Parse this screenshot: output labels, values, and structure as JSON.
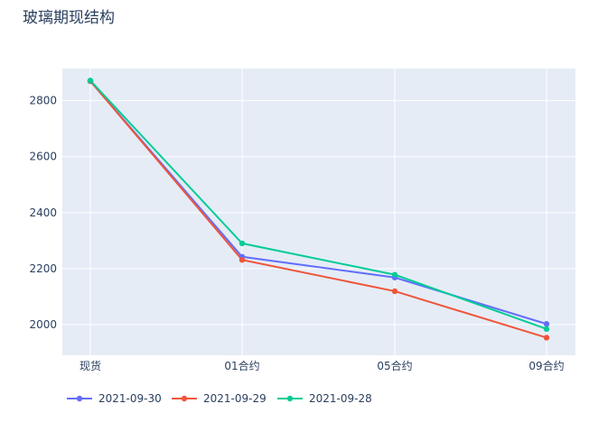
{
  "chart_data": {
    "type": "line",
    "title": "玻璃期现结构",
    "xlabel": "",
    "ylabel": "",
    "categories": [
      "现货",
      "01合约",
      "05合约",
      "09合约"
    ],
    "ylim": [
      1890,
      2915
    ],
    "yticks": [
      2000,
      2200,
      2400,
      2600,
      2800
    ],
    "grid": true,
    "legend_position": "bottom-left",
    "series": [
      {
        "name": "2021-09-30",
        "color": "#636efa",
        "values": [
          2870,
          2242,
          2168,
          2002
        ]
      },
      {
        "name": "2021-09-29",
        "color": "#ef553b",
        "values": [
          2870,
          2231,
          2119,
          1953
        ]
      },
      {
        "name": "2021-09-28",
        "color": "#00cc96",
        "values": [
          2872,
          2290,
          2178,
          1984
        ]
      }
    ]
  },
  "colors": {
    "plot_background": "#e5ecf6",
    "grid": "#ffffff",
    "text": "#2a3f5f"
  }
}
